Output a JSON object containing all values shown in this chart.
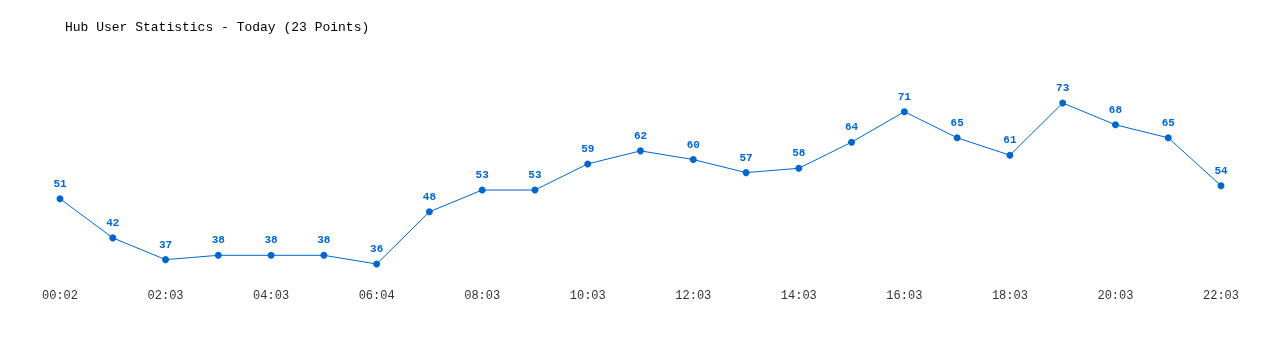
{
  "chart_data": {
    "type": "line",
    "title": "Hub User Statistics - Today (23 Points)",
    "categories": [
      "00:02",
      null,
      "02:03",
      null,
      "04:03",
      null,
      "06:04",
      null,
      "08:03",
      null,
      "10:03",
      null,
      "12:03",
      null,
      "14:03",
      null,
      "16:03",
      null,
      "18:03",
      null,
      "20:03",
      null,
      "22:03"
    ],
    "series": [
      {
        "color": "#0066cc",
        "values": [
          51,
          42,
          37,
          38,
          38,
          38,
          36,
          48,
          53,
          53,
          59,
          62,
          60,
          57,
          58,
          64,
          71,
          65,
          61,
          73,
          68,
          65,
          54
        ]
      }
    ],
    "data_labels": true,
    "marker": "circle",
    "line_style": "solid"
  }
}
